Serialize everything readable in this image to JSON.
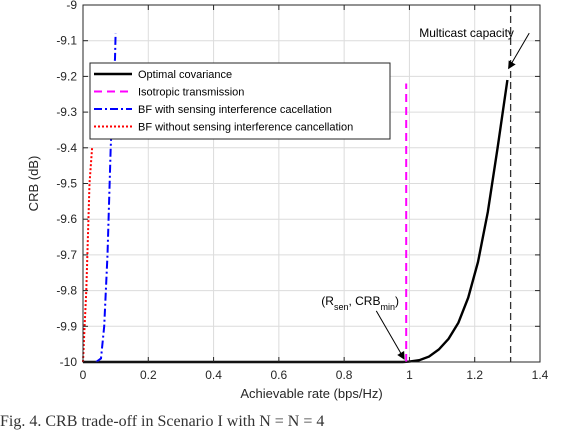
{
  "chart_data": {
    "type": "line",
    "xlabel": "Achievable rate (bps/Hz)",
    "ylabel": "CRB (dB)",
    "xlim": [
      0,
      1.4
    ],
    "ylim": [
      -10,
      -9
    ],
    "xticks": [
      0,
      0.2,
      0.4,
      0.6,
      0.8,
      1,
      1.2,
      1.4
    ],
    "xtick_labels": [
      "0",
      "0.2",
      "0.4",
      "0.6",
      "0.8",
      "1",
      "1.2",
      "1.4"
    ],
    "yticks": [
      -10,
      -9.9,
      -9.8,
      -9.7,
      -9.6,
      -9.5,
      -9.4,
      -9.3,
      -9.2,
      -9.1,
      -9
    ],
    "ytick_labels": [
      "-10",
      "-9.9",
      "-9.8",
      "-9.7",
      "-9.6",
      "-9.5",
      "-9.4",
      "-9.3",
      "-9.2",
      "-9.1",
      "-9"
    ],
    "grid": true,
    "legend_position": "top-left",
    "series": [
      {
        "name": "Optimal covariance",
        "color": "#000000",
        "style": "solid",
        "x": [
          0,
          0.5,
          0.98,
          1.0,
          1.03,
          1.06,
          1.09,
          1.12,
          1.15,
          1.18,
          1.21,
          1.24,
          1.27,
          1.3
        ],
        "y": [
          -10,
          -10,
          -10,
          -9.999,
          -9.995,
          -9.985,
          -9.965,
          -9.935,
          -9.89,
          -9.82,
          -9.72,
          -9.58,
          -9.4,
          -9.21
        ]
      },
      {
        "name": "Isotropic transmission",
        "color": "#ff00ff",
        "style": "dashed",
        "x": [
          0.99,
          0.99
        ],
        "y": [
          -10,
          -9.22
        ]
      },
      {
        "name": "BF with sensing interference cacellation",
        "color": "#0000ff",
        "style": "dashdot",
        "x": [
          0.04,
          0.055,
          0.065,
          0.075,
          0.085,
          0.092,
          0.098,
          0.1
        ],
        "y": [
          -10,
          -9.99,
          -9.9,
          -9.7,
          -9.4,
          -9.25,
          -9.15,
          -9.08
        ]
      },
      {
        "name": "BF without sensing interference cancellation",
        "color": "#ff0000",
        "style": "dotted",
        "x": [
          0.0,
          0.005,
          0.01,
          0.015,
          0.02,
          0.028
        ],
        "y": [
          -10,
          -9.9,
          -9.8,
          -9.65,
          -9.5,
          -9.4
        ]
      }
    ],
    "reference_line": {
      "x": 1.31,
      "color": "#333333",
      "style": "dashed"
    },
    "annotations": {
      "multicast": {
        "text": "Multicast capacity",
        "target_x": 1.31,
        "target_y": -9.2,
        "text_x": 1.03,
        "text_y": -9.09
      },
      "rsen": {
        "prefix": "(R",
        "sub1": "sen",
        "middle": ", CRB",
        "sub2": "min",
        "suffix": ")",
        "target_x": 0.99,
        "target_y": -10,
        "text_x": 0.73,
        "text_y": -9.84
      }
    }
  },
  "caption": {
    "text": "Fig. 4.  CRB trade-off in Scenario I with  N    = N    = 4"
  }
}
